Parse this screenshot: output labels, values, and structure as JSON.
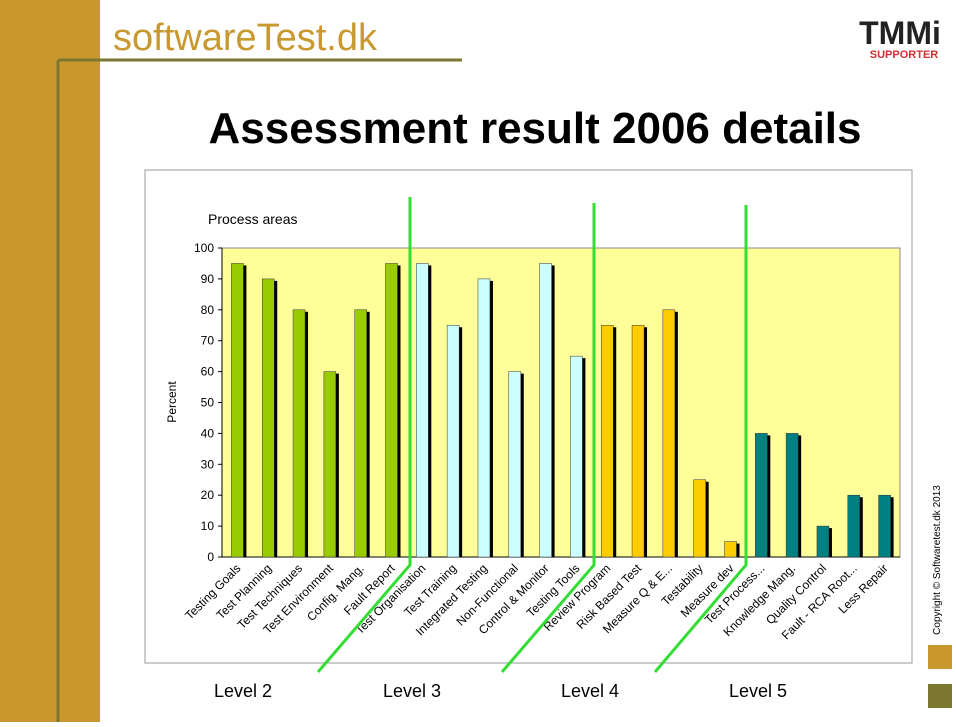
{
  "header": {
    "logo": "softwareTest.dk",
    "badge": "TMMi",
    "badge_sub": "SUPPORTER"
  },
  "title": "Assessment result 2006 details",
  "copyright": "Copyright © Softwaretest.dk 2013",
  "chart_data": {
    "type": "bar",
    "title": "Process areas",
    "y_label": "Percent",
    "categories": [
      "Testing Goals",
      "Test Planning",
      "Test Techniques",
      "Test Environment",
      "Config. Mang.",
      "Fault Report",
      "Test Organisation",
      "Test Training",
      "Integrated Testing",
      "Non-Functional",
      "Control & Monitor",
      "Testing Tools",
      "Review Program",
      "Risk Based Test",
      "Measure Q & E...",
      "Testability",
      "Measure dev",
      "Test Process...",
      "Knowledge Mang.",
      "Quality Control",
      "Fault - RCA Root...",
      "Less Repair"
    ],
    "values": [
      95,
      90,
      80,
      60,
      80,
      95,
      95,
      75,
      90,
      60,
      95,
      65,
      75,
      75,
      80,
      25,
      5,
      40,
      40,
      10,
      20,
      20
    ],
    "colors": [
      "#99cc00",
      "#99cc00",
      "#99cc00",
      "#99cc00",
      "#99cc00",
      "#99cc00",
      "#ccffff",
      "#ccffff",
      "#ccffff",
      "#ccffff",
      "#ccffff",
      "#ccffff",
      "#ffcc00",
      "#ffcc00",
      "#ffcc00",
      "#ffcc00",
      "#ffcc00",
      "#008080",
      "#008080",
      "#008080",
      "#008080",
      "#008080"
    ],
    "ylim": [
      0,
      100
    ],
    "yticks": [
      0,
      10,
      20,
      30,
      40,
      50,
      60,
      70,
      80,
      90,
      100
    ],
    "levels": [
      "Level 2",
      "Level 3",
      "Level 4",
      "Level 5"
    ]
  }
}
